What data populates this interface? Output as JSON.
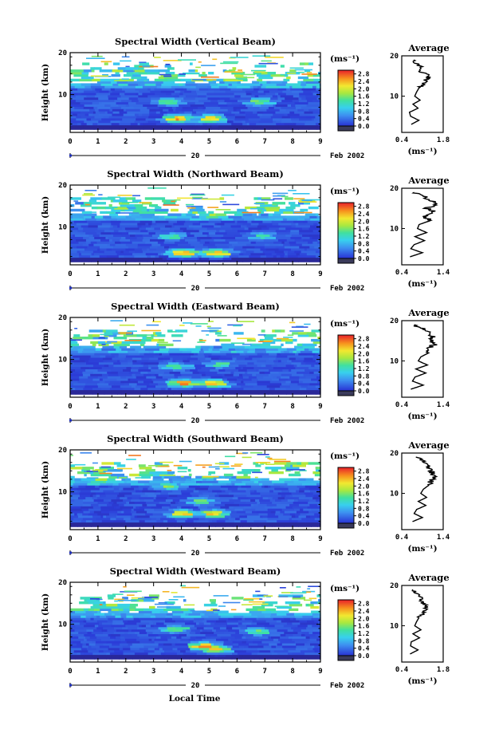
{
  "figure": {
    "date_day": "20",
    "date_month": "Feb 2002",
    "xlabel": "Local Time",
    "colorbar_units": "(ms⁻¹)",
    "average_title": "Average",
    "average_xlabel": "(ms⁻¹)"
  },
  "chart_data": [
    {
      "type": "heatmap",
      "title": "Spectral Width (Vertical Beam)",
      "ylabel": "Height (km)",
      "x_ticks": [
        "0",
        "1",
        "2",
        "3",
        "4",
        "5",
        "6",
        "7",
        "8",
        "9"
      ],
      "xlim": [
        0,
        9
      ],
      "y_ticks": [
        "10",
        "20"
      ],
      "ylim": [
        1,
        20
      ],
      "colorbar": {
        "ticks": [
          "0.0",
          "0.4",
          "0.8",
          "1.2",
          "1.6",
          "2.0",
          "2.4",
          "2.8"
        ],
        "range": [
          0.0,
          3.0
        ]
      },
      "hotspots": [
        {
          "t": 3.7,
          "h": 4.0,
          "v": 2.8
        },
        {
          "t": 4.9,
          "h": 4.0,
          "v": 2.6
        },
        {
          "t": 3.4,
          "h": 8.0,
          "v": 1.8
        },
        {
          "t": 6.6,
          "h": 8.0,
          "v": 1.8
        },
        {
          "t": 3.2,
          "h": 14.0,
          "v": 2.0
        }
      ],
      "average": {
        "xlim": [
          0.4,
          1.8
        ],
        "x_ticks": [
          "0.4",
          "1.8"
        ],
        "y_ticks": [
          "10",
          "20"
        ],
        "height": [
          3,
          4,
          5,
          6,
          7,
          8,
          9,
          10,
          11,
          12,
          13,
          14,
          15,
          16,
          17,
          18,
          19
        ],
        "width": [
          0.72,
          0.98,
          0.7,
          0.66,
          0.95,
          0.78,
          1.02,
          0.84,
          0.9,
          0.98,
          1.15,
          1.22,
          1.35,
          1.05,
          1.1,
          0.9,
          0.8
        ]
      }
    },
    {
      "type": "heatmap",
      "title": "Spectral Width (Northward Beam)",
      "ylabel": "Height (km)",
      "x_ticks": [
        "0",
        "1",
        "2",
        "3",
        "4",
        "5",
        "6",
        "7",
        "8",
        "9"
      ],
      "xlim": [
        0,
        9
      ],
      "y_ticks": [
        "10",
        "20"
      ],
      "ylim": [
        1,
        20
      ],
      "colorbar": {
        "ticks": [
          "0.0",
          "0.4",
          "0.8",
          "1.2",
          "1.6",
          "2.0",
          "2.4",
          "2.8"
        ],
        "range": [
          0.0,
          3.0
        ]
      },
      "hotspots": [
        {
          "t": 3.9,
          "h": 3.5,
          "v": 2.8
        },
        {
          "t": 5.1,
          "h": 3.5,
          "v": 2.7
        },
        {
          "t": 3.5,
          "h": 7.5,
          "v": 1.7
        },
        {
          "t": 6.7,
          "h": 7.5,
          "v": 1.6
        },
        {
          "t": 5.0,
          "h": 12.5,
          "v": 2.0
        }
      ],
      "average": {
        "xlim": [
          0.4,
          1.4
        ],
        "x_ticks": [
          "0.4",
          "1.4"
        ],
        "y_ticks": [
          "10",
          "20"
        ],
        "height": [
          3,
          4,
          5,
          6,
          7,
          8,
          9,
          10,
          11,
          12,
          13,
          14,
          15,
          16,
          17,
          18,
          19
        ],
        "width": [
          0.6,
          0.9,
          0.62,
          0.7,
          0.95,
          0.72,
          1.0,
          0.78,
          0.82,
          1.1,
          0.95,
          1.2,
          1.0,
          1.25,
          1.1,
          0.92,
          0.7
        ]
      }
    },
    {
      "type": "heatmap",
      "title": "Spectral Width (Eastward Beam)",
      "ylabel": "Height (km)",
      "x_ticks": [
        "0",
        "1",
        "2",
        "3",
        "4",
        "5",
        "6",
        "7",
        "8",
        "9"
      ],
      "xlim": [
        0,
        9
      ],
      "y_ticks": [
        "10",
        "20"
      ],
      "ylim": [
        1,
        20
      ],
      "colorbar": {
        "ticks": [
          "0.0",
          "0.4",
          "0.8",
          "1.2",
          "1.6",
          "2.0",
          "2.4",
          "2.8"
        ],
        "range": [
          0.0,
          3.0
        ]
      },
      "hotspots": [
        {
          "t": 3.9,
          "h": 4.0,
          "v": 2.8
        },
        {
          "t": 5.0,
          "h": 4.0,
          "v": 2.6
        },
        {
          "t": 3.6,
          "h": 8.0,
          "v": 1.7
        },
        {
          "t": 5.2,
          "h": 8.5,
          "v": 1.6
        },
        {
          "t": 3.0,
          "h": 14.5,
          "v": 2.2
        }
      ],
      "average": {
        "xlim": [
          0.4,
          1.4
        ],
        "x_ticks": [
          "0.4",
          "1.4"
        ],
        "y_ticks": [
          "10",
          "20"
        ],
        "height": [
          3,
          4,
          5,
          6,
          7,
          8,
          9,
          10,
          11,
          12,
          13,
          14,
          15,
          16,
          17,
          18,
          19
        ],
        "width": [
          0.62,
          0.92,
          0.66,
          0.72,
          0.98,
          0.74,
          1.02,
          0.8,
          0.86,
          1.05,
          1.0,
          1.18,
          1.1,
          1.15,
          1.05,
          0.9,
          0.7
        ]
      }
    },
    {
      "type": "heatmap",
      "title": "Spectral Width (Southward Beam)",
      "ylabel": "Height (km)",
      "x_ticks": [
        "0",
        "1",
        "2",
        "3",
        "4",
        "5",
        "6",
        "7",
        "8",
        "9"
      ],
      "xlim": [
        0,
        9
      ],
      "y_ticks": [
        "10",
        "20"
      ],
      "ylim": [
        1,
        20
      ],
      "colorbar": {
        "ticks": [
          "0.0",
          "0.4",
          "0.8",
          "1.2",
          "1.6",
          "2.0",
          "2.4",
          "2.8"
        ],
        "range": [
          0.0,
          3.0
        ]
      },
      "hotspots": [
        {
          "t": 3.9,
          "h": 4.5,
          "v": 2.6
        },
        {
          "t": 5.0,
          "h": 4.5,
          "v": 2.5
        },
        {
          "t": 4.5,
          "h": 7.5,
          "v": 1.8
        },
        {
          "t": 3.4,
          "h": 11.0,
          "v": 1.8
        },
        {
          "t": 1.0,
          "h": 12.5,
          "v": 2.0
        }
      ],
      "average": {
        "xlim": [
          0.4,
          1.4
        ],
        "x_ticks": [
          "0.4",
          "1.4"
        ],
        "y_ticks": [
          "10",
          "20"
        ],
        "height": [
          3,
          4,
          5,
          6,
          7,
          8,
          9,
          10,
          11,
          12,
          13,
          14,
          15,
          16,
          17,
          18,
          19
        ],
        "width": [
          0.66,
          0.9,
          0.7,
          0.76,
          0.98,
          0.8,
          1.0,
          0.86,
          0.92,
          1.05,
          1.1,
          1.2,
          1.15,
          1.05,
          1.1,
          0.92,
          0.74
        ]
      }
    },
    {
      "type": "heatmap",
      "title": "Spectral Width (Westward Beam)",
      "ylabel": "Height (km)",
      "x_ticks": [
        "0",
        "1",
        "2",
        "3",
        "4",
        "5",
        "6",
        "7",
        "8",
        "9"
      ],
      "xlim": [
        0,
        9
      ],
      "y_ticks": [
        "10",
        "20"
      ],
      "ylim": [
        1,
        20
      ],
      "colorbar": {
        "ticks": [
          "0.0",
          "0.4",
          "0.8",
          "1.2",
          "1.6",
          "2.0",
          "2.4",
          "2.8"
        ],
        "range": [
          0.0,
          3.0
        ]
      },
      "hotspots": [
        {
          "t": 4.6,
          "h": 4.5,
          "v": 2.7
        },
        {
          "t": 5.1,
          "h": 3.8,
          "v": 2.5
        },
        {
          "t": 3.6,
          "h": 8.5,
          "v": 1.7
        },
        {
          "t": 6.6,
          "h": 8.0,
          "v": 1.8
        },
        {
          "t": 3.0,
          "h": 14.5,
          "v": 2.0
        }
      ],
      "average": {
        "xlim": [
          0.4,
          1.8
        ],
        "x_ticks": [
          "0.4",
          "1.8"
        ],
        "y_ticks": [
          "10",
          "20"
        ],
        "height": [
          3,
          4,
          5,
          6,
          7,
          8,
          9,
          10,
          11,
          12,
          13,
          14,
          15,
          16,
          17,
          18,
          19
        ],
        "width": [
          0.68,
          0.95,
          0.7,
          0.72,
          1.0,
          0.78,
          1.05,
          0.84,
          0.9,
          0.98,
          1.1,
          1.18,
          1.25,
          1.05,
          1.12,
          0.9,
          0.78
        ]
      }
    }
  ]
}
